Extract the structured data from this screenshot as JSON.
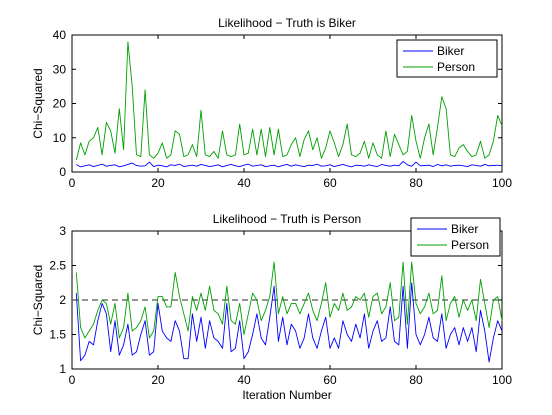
{
  "chart_data": [
    {
      "type": "line",
      "title": "Likelihood − Truth is Biker",
      "xlabel": "",
      "ylabel": "Chi−Squared",
      "xlim": [
        0,
        100
      ],
      "ylim": [
        0,
        40
      ],
      "xticks": [
        0,
        20,
        40,
        60,
        80,
        100
      ],
      "yticks": [
        0,
        10,
        20,
        30,
        40
      ],
      "legend": {
        "placement": "top-right"
      },
      "x": [
        1,
        2,
        3,
        4,
        5,
        6,
        7,
        8,
        9,
        10,
        11,
        12,
        13,
        14,
        15,
        16,
        17,
        18,
        19,
        20,
        21,
        22,
        23,
        24,
        25,
        26,
        27,
        28,
        29,
        30,
        31,
        32,
        33,
        34,
        35,
        36,
        37,
        38,
        39,
        40,
        41,
        42,
        43,
        44,
        45,
        46,
        47,
        48,
        49,
        50,
        51,
        52,
        53,
        54,
        55,
        56,
        57,
        58,
        59,
        60,
        61,
        62,
        63,
        64,
        65,
        66,
        67,
        68,
        69,
        70,
        71,
        72,
        73,
        74,
        75,
        76,
        77,
        78,
        79,
        80,
        81,
        82,
        83,
        84,
        85,
        86,
        87,
        88,
        89,
        90,
        91,
        92,
        93,
        94,
        95,
        96,
        97,
        98,
        99,
        100
      ],
      "series": [
        {
          "name": "Biker",
          "color": "#0000ff",
          "values": [
            2.2,
            1.5,
            1.8,
            2.1,
            1.6,
            1.9,
            2.3,
            1.7,
            1.9,
            2.1,
            1.5,
            1.8,
            2.2,
            2.6,
            1.9,
            1.7,
            1.8,
            2.9,
            1.6,
            2.0,
            1.8,
            1.5,
            2.1,
            1.9,
            2.3,
            1.6,
            1.8,
            2.0,
            1.7,
            2.2,
            1.9,
            1.6,
            1.8,
            2.1,
            1.5,
            1.9,
            2.2,
            1.8,
            1.6,
            2.0,
            2.3,
            1.7,
            1.9,
            2.1,
            1.6,
            1.8,
            2.0,
            1.5,
            1.9,
            2.2,
            1.7,
            2.1,
            1.8,
            1.6,
            2.0,
            1.9,
            2.3,
            1.7,
            1.8,
            2.1,
            1.6,
            1.9,
            2.2,
            1.8,
            1.5,
            2.0,
            1.9,
            1.7,
            2.1,
            1.8,
            1.6,
            2.2,
            1.9,
            1.7,
            2.0,
            1.8,
            3.1,
            2.1,
            1.7,
            2.9,
            1.8,
            1.9,
            2.0,
            1.6,
            2.2,
            1.8,
            2.1,
            1.7,
            1.9,
            2.0,
            1.8,
            1.6,
            2.1,
            1.9,
            1.7,
            2.2,
            1.8,
            1.9,
            2.0,
            1.8
          ]
        },
        {
          "name": "Person",
          "color": "#00a000",
          "values": [
            3.5,
            8.5,
            5.0,
            9.0,
            10.0,
            13.0,
            5.0,
            14.5,
            12.0,
            5.5,
            18.5,
            6.5,
            38.0,
            25.0,
            5.0,
            4.5,
            24.0,
            5.0,
            4.0,
            5.5,
            8.5,
            4.0,
            5.0,
            12.0,
            11.0,
            4.5,
            5.0,
            8.0,
            4.5,
            18.0,
            5.0,
            4.5,
            6.0,
            4.0,
            12.0,
            5.0,
            4.5,
            5.0,
            14.0,
            5.0,
            5.5,
            12.5,
            5.0,
            12.5,
            4.5,
            13.0,
            5.0,
            12.5,
            4.5,
            5.0,
            8.0,
            10.0,
            4.5,
            9.5,
            12.0,
            6.5,
            10.0,
            4.0,
            7.0,
            12.0,
            8.5,
            4.5,
            8.0,
            14.0,
            5.0,
            4.5,
            5.5,
            9.0,
            4.0,
            8.5,
            5.0,
            4.0,
            12.0,
            4.5,
            11.0,
            8.0,
            5.0,
            6.0,
            16.5,
            9.0,
            4.0,
            10.0,
            14.0,
            5.0,
            13.0,
            22.0,
            18.5,
            5.0,
            4.5,
            7.0,
            8.0,
            6.0,
            4.5,
            5.0,
            9.0,
            4.0,
            5.0,
            9.0,
            16.5,
            13.5
          ]
        }
      ]
    },
    {
      "type": "line",
      "title": "Likelihood − Truth is Person",
      "xlabel": "Iteration Number",
      "ylabel": "Chi−Squared",
      "xlim": [
        0,
        100
      ],
      "ylim": [
        1,
        3
      ],
      "xticks": [
        0,
        20,
        40,
        60,
        80,
        100
      ],
      "yticks": [
        1,
        1.5,
        2,
        2.5,
        3
      ],
      "reference_line": {
        "y": 2,
        "style": "dashed",
        "color": "#555555"
      },
      "legend": {
        "placement": "top-right"
      },
      "x": [
        1,
        2,
        3,
        4,
        5,
        6,
        7,
        8,
        9,
        10,
        11,
        12,
        13,
        14,
        15,
        16,
        17,
        18,
        19,
        20,
        21,
        22,
        23,
        24,
        25,
        26,
        27,
        28,
        29,
        30,
        31,
        32,
        33,
        34,
        35,
        36,
        37,
        38,
        39,
        40,
        41,
        42,
        43,
        44,
        45,
        46,
        47,
        48,
        49,
        50,
        51,
        52,
        53,
        54,
        55,
        56,
        57,
        58,
        59,
        60,
        61,
        62,
        63,
        64,
        65,
        66,
        67,
        68,
        69,
        70,
        71,
        72,
        73,
        74,
        75,
        76,
        77,
        78,
        79,
        80,
        81,
        82,
        83,
        84,
        85,
        86,
        87,
        88,
        89,
        90,
        91,
        92,
        93,
        94,
        95,
        96,
        97,
        98,
        99,
        100
      ],
      "series": [
        {
          "name": "Biker",
          "color": "#0000ff",
          "values": [
            2.1,
            1.12,
            1.2,
            1.4,
            1.35,
            1.7,
            1.95,
            1.8,
            1.25,
            1.7,
            1.2,
            1.35,
            1.65,
            1.2,
            1.25,
            1.5,
            1.7,
            1.2,
            1.25,
            1.95,
            1.55,
            1.45,
            1.4,
            1.7,
            1.55,
            1.15,
            1.15,
            1.8,
            1.4,
            1.75,
            1.3,
            1.7,
            1.45,
            1.4,
            1.3,
            1.95,
            1.25,
            1.3,
            1.7,
            1.15,
            1.25,
            1.5,
            1.8,
            1.45,
            1.35,
            1.75,
            2.2,
            1.4,
            1.75,
            1.35,
            1.65,
            1.55,
            1.3,
            1.45,
            1.8,
            1.45,
            1.3,
            1.55,
            1.75,
            1.3,
            1.45,
            1.3,
            1.7,
            1.5,
            1.4,
            1.65,
            1.45,
            1.8,
            1.3,
            1.55,
            1.7,
            1.4,
            1.45,
            1.9,
            1.4,
            1.35,
            2.2,
            1.3,
            2.25,
            1.5,
            1.35,
            1.5,
            1.75,
            1.45,
            1.4,
            1.8,
            1.3,
            1.5,
            1.6,
            1.35,
            1.6,
            1.4,
            1.6,
            1.25,
            1.85,
            1.55,
            1.1,
            1.45,
            1.7,
            1.55
          ]
        },
        {
          "name": "Person",
          "color": "#00a000",
          "values": [
            2.4,
            1.6,
            1.45,
            1.55,
            1.65,
            1.85,
            2.0,
            1.95,
            1.65,
            1.95,
            1.45,
            1.6,
            2.1,
            1.55,
            1.6,
            1.7,
            1.9,
            1.45,
            1.55,
            2.05,
            2.05,
            1.9,
            1.9,
            2.4,
            2.05,
            1.8,
            1.55,
            2.05,
            1.85,
            2.1,
            1.85,
            2.2,
            1.85,
            1.8,
            1.65,
            2.2,
            1.7,
            1.65,
            1.95,
            1.5,
            1.8,
            2.1,
            2.0,
            1.7,
            1.85,
            2.05,
            2.55,
            1.8,
            2.05,
            1.8,
            1.95,
            1.95,
            1.8,
            1.95,
            2.1,
            1.85,
            1.7,
            1.95,
            2.25,
            1.75,
            1.95,
            1.85,
            2.1,
            1.85,
            1.9,
            2.05,
            2.0,
            2.1,
            1.75,
            2.05,
            2.1,
            1.8,
            1.9,
            2.25,
            1.7,
            1.75,
            2.55,
            1.65,
            2.55,
            1.95,
            1.8,
            1.9,
            2.1,
            1.8,
            1.85,
            2.35,
            1.7,
            1.95,
            2.05,
            1.75,
            2.0,
            1.85,
            2.0,
            1.7,
            2.3,
            1.95,
            1.6,
            2.0,
            2.05,
            1.7
          ]
        }
      ]
    }
  ]
}
